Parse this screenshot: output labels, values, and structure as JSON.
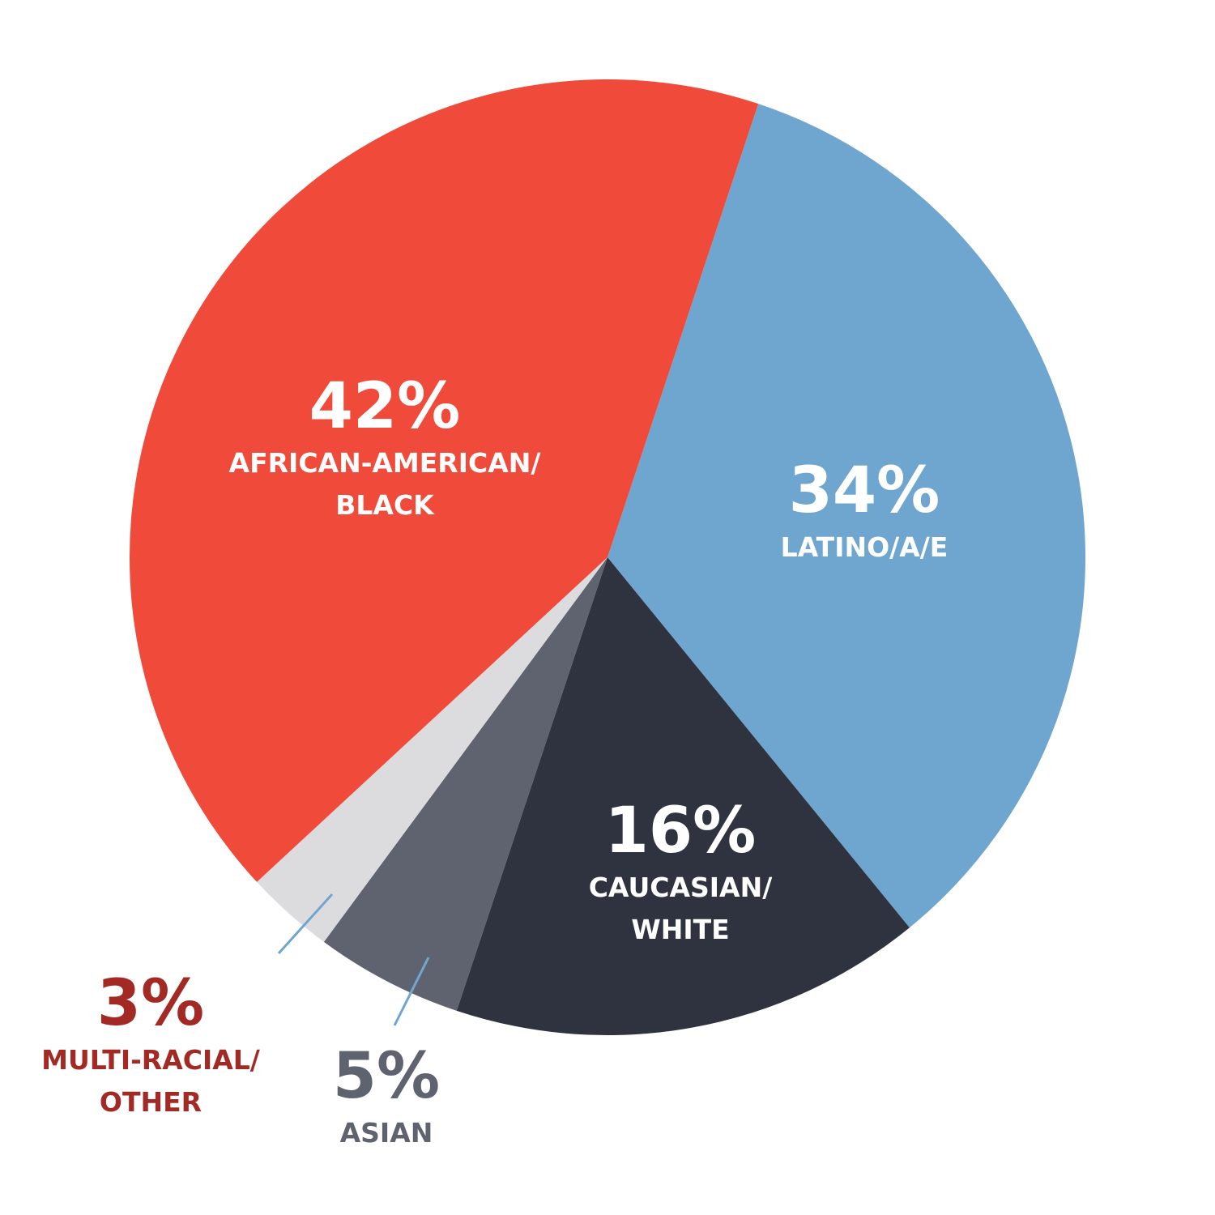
{
  "chart_data": {
    "type": "pie",
    "categories": [
      "African-American/Black",
      "Latino/a/e",
      "Caucasian/White",
      "Asian",
      "Multi-Racial/Other"
    ],
    "values": [
      42,
      34,
      16,
      5,
      3
    ],
    "slices": [
      {
        "name": "AFRICAN-AMERICAN/BLACK",
        "value": 42,
        "pct_text": "42%",
        "label_lines": [
          "AFRICAN-AMERICAN/",
          "BLACK"
        ],
        "color": "#f04a3a",
        "label_color": "#ffffff"
      },
      {
        "name": "LATINO/A/E",
        "value": 34,
        "pct_text": "34%",
        "label_lines": [
          "LATINO/A/E"
        ],
        "color": "#6fa6cf",
        "label_color": "#ffffff"
      },
      {
        "name": "CAUCASIAN/WHITE",
        "value": 16,
        "pct_text": "16%",
        "label_lines": [
          "CAUCASIAN/",
          "WHITE"
        ],
        "color": "#2f333f",
        "label_color": "#ffffff"
      },
      {
        "name": "ASIAN",
        "value": 5,
        "pct_text": "5%",
        "label_lines": [
          "ASIAN"
        ],
        "color": "#5f6370",
        "label_color": "#5f6370"
      },
      {
        "name": "MULTI-RACIAL/OTHER",
        "value": 3,
        "pct_text": "3%",
        "label_lines": [
          "MULTI-RACIAL/",
          "OTHER"
        ],
        "color": "#dcdcde",
        "label_color": "#a32a24"
      }
    ],
    "leader_line_color": "#6fa6cf",
    "legend": "none"
  }
}
